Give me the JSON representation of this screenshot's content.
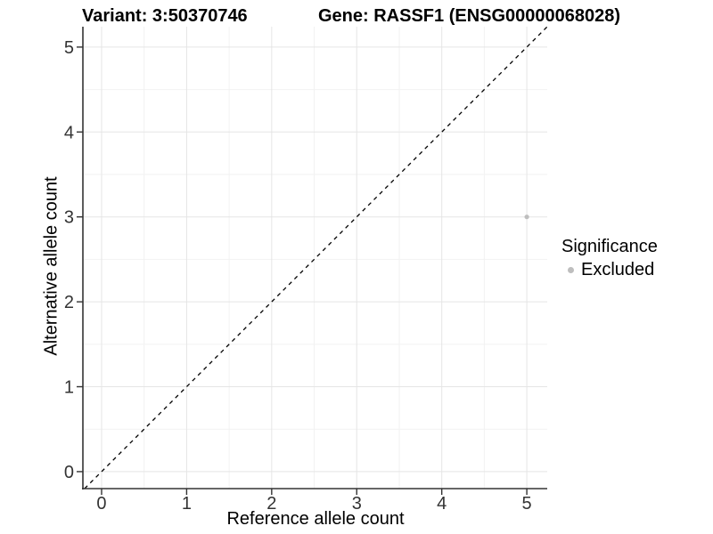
{
  "chart_data": {
    "type": "scatter",
    "title_left": "Variant: 3:50370746",
    "title_right": "Gene: RASSF1 (ENSG00000068028)",
    "xlabel": "Reference allele count",
    "ylabel": "Alternative allele count",
    "xlim": [
      -0.22,
      5.24
    ],
    "ylim": [
      -0.2,
      5.24
    ],
    "xticks": [
      0,
      1,
      2,
      3,
      4,
      5
    ],
    "yticks": [
      0,
      1,
      2,
      3,
      4,
      5
    ],
    "minor_step": 0.5,
    "grid": true,
    "reference_line": {
      "style": "dashed",
      "slope": 1,
      "intercept": 0,
      "color": "#000000"
    },
    "series": [
      {
        "name": "Excluded",
        "color": "#bebebe",
        "points": [
          {
            "x": 5,
            "y": 3
          }
        ]
      }
    ],
    "legend": {
      "title": "Significance",
      "position": "right",
      "items": [
        {
          "label": "Excluded",
          "color": "#bebebe"
        }
      ]
    },
    "colors": {
      "grid_major": "#e5e5e5",
      "grid_minor": "#f2f2f2",
      "axis": "#333333",
      "tick_label": "#333333",
      "point": "#bebebe",
      "background": "#ffffff"
    }
  }
}
